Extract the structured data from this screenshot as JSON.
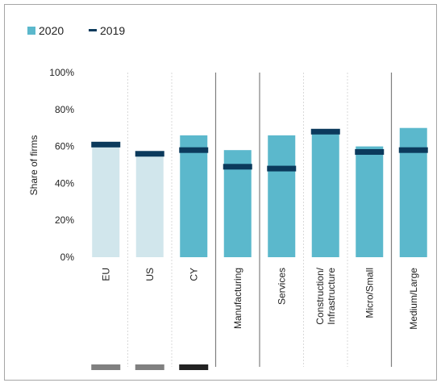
{
  "chart_data": {
    "type": "bar",
    "title": "",
    "xlabel": "",
    "ylabel": "Share of firms",
    "ylim": [
      0,
      100
    ],
    "yticks": [
      "0%",
      "20%",
      "40%",
      "60%",
      "80%",
      "100%"
    ],
    "categories": [
      "EU",
      "US",
      "CY",
      "Manufacturing",
      "Services",
      "Construction/\nInfrastructure",
      "Micro/Small",
      "Medium/Large"
    ],
    "series": [
      {
        "name": "2020",
        "kind": "bar",
        "values": [
          60,
          55,
          66,
          58,
          66,
          69,
          60,
          70
        ]
      },
      {
        "name": "2019",
        "kind": "marker",
        "values": [
          61,
          56,
          58,
          49,
          48,
          68,
          57,
          58
        ]
      }
    ],
    "legend": {
      "position": "top-left",
      "entries": [
        "2020",
        "2019"
      ]
    },
    "grid": false,
    "colors": {
      "bar_light": "#d1e6ec",
      "bar_main": "#5bb8cc",
      "marker": "#0b3a5c",
      "group_tag_gray": "#808080",
      "group_tag_dark": "#222222",
      "separator": "#7f7f7f",
      "separator_light": "#d9d9d9",
      "frame": "#a6a6a6"
    }
  }
}
